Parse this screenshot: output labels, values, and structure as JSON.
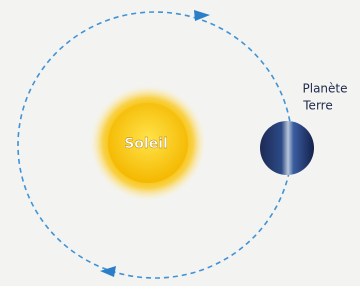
{
  "sun": {
    "label": "Soleil"
  },
  "earth": {
    "label": [
      "Planète",
      "Terre"
    ]
  }
}
